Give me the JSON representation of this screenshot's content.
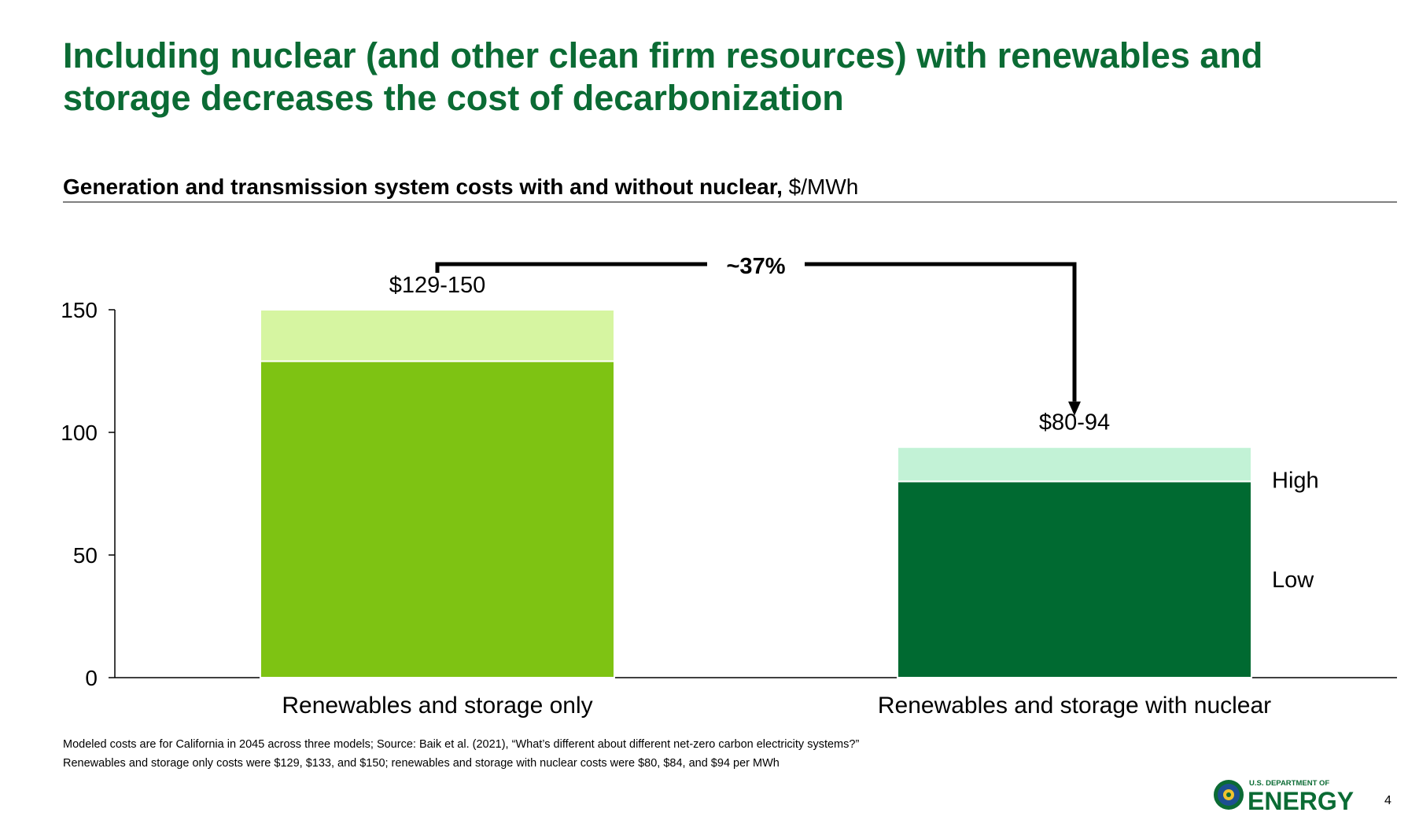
{
  "slide": {
    "title": "Including nuclear (and other clean firm resources) with renewables and storage decreases the cost of decarbonization",
    "subtitle_bold": "Generation and transmission system costs with and without nuclear,",
    "subtitle_unit": " $/MWh",
    "footnotes": [
      "Modeled costs are for California in 2045 across three models; Source: Baik et al. (2021), “What’s different about different net-zero carbon electricity systems?”",
      "Renewables and storage only costs were $129, $133, and $150; renewables and storage with nuclear costs were $80, $84, and $94 per MWh"
    ],
    "logo_text_top": "U.S. DEPARTMENT OF",
    "logo_text_main": "ENERGY",
    "page_number": "4"
  },
  "chart_data": {
    "type": "bar",
    "stacked": true,
    "categories": [
      "Renewables and storage only",
      "Renewables and storage with nuclear"
    ],
    "series": [
      {
        "name": "Low",
        "values": [
          129,
          80
        ],
        "colors": [
          "#7ec313",
          "#006a31"
        ]
      },
      {
        "name": "High",
        "values": [
          21,
          14
        ],
        "colors": [
          "#d6f5a1",
          "#c2f2d6"
        ]
      }
    ],
    "totals": [
      150,
      94
    ],
    "data_labels": [
      "$129-150",
      "$80-94"
    ],
    "ylim": [
      0,
      150
    ],
    "yticks": [
      0,
      50,
      100,
      150
    ],
    "legend_position": "right",
    "annotation": {
      "text": "~37%",
      "from": "Renewables and storage only",
      "to": "Renewables and storage with nuclear"
    }
  }
}
